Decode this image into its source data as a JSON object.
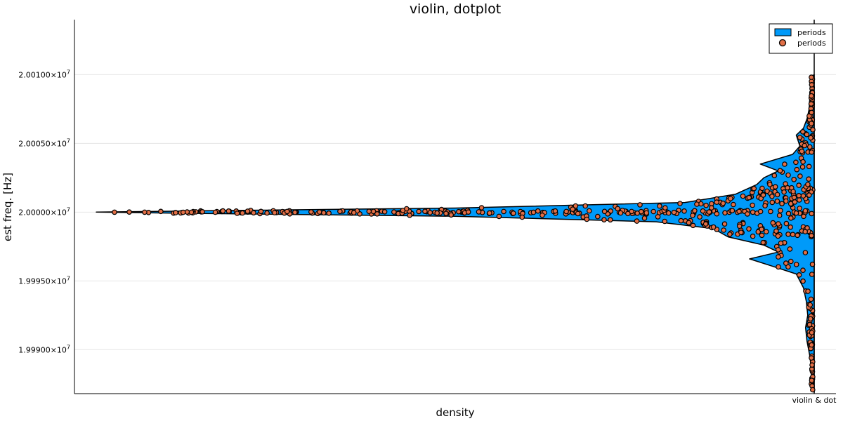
{
  "chart_data": {
    "type": "violin",
    "title": "violin, dotplot",
    "xlabel": "density",
    "ylabel": "est freq. [Hz]",
    "ylim": [
      19986800,
      20014000
    ],
    "categories": [
      "violin & dot"
    ],
    "yticks": [
      {
        "value": 19990000,
        "mantissa": "1.99900",
        "exp": "7"
      },
      {
        "value": 19995000,
        "mantissa": "1.99950",
        "exp": "7"
      },
      {
        "value": 20000000,
        "mantissa": "2.00000",
        "exp": "7"
      },
      {
        "value": 20005000,
        "mantissa": "2.00050",
        "exp": "7"
      },
      {
        "value": 20010000,
        "mantissa": "2.00100",
        "exp": "7"
      }
    ],
    "grid": true,
    "legend_position": "top-right",
    "series": [
      {
        "name": "periods",
        "kind": "violin",
        "color": "#009af9"
      },
      {
        "name": "periods",
        "kind": "dots",
        "color": "#e26f46"
      }
    ],
    "violin_profile": [
      [
        19986900,
        0.0
      ],
      [
        19987500,
        0.004
      ],
      [
        19988500,
        0.004
      ],
      [
        19989500,
        0.006
      ],
      [
        19990600,
        0.01
      ],
      [
        19991600,
        0.012
      ],
      [
        19992500,
        0.009
      ],
      [
        19993500,
        0.011
      ],
      [
        19994500,
        0.015
      ],
      [
        19995500,
        0.025
      ],
      [
        19996100,
        0.06
      ],
      [
        19996600,
        0.09
      ],
      [
        19997100,
        0.05
      ],
      [
        19997600,
        0.07
      ],
      [
        19998200,
        0.12
      ],
      [
        19998800,
        0.14
      ],
      [
        19999300,
        0.22
      ],
      [
        19999700,
        0.5
      ],
      [
        19999900,
        0.85
      ],
      [
        20000000,
        1.0
      ],
      [
        20000100,
        0.85
      ],
      [
        20000300,
        0.5
      ],
      [
        20000700,
        0.18
      ],
      [
        20001300,
        0.11
      ],
      [
        20002000,
        0.08
      ],
      [
        20002500,
        0.07
      ],
      [
        20003000,
        0.05
      ],
      [
        20003500,
        0.075
      ],
      [
        20004200,
        0.03
      ],
      [
        20004800,
        0.02
      ],
      [
        20005600,
        0.025
      ],
      [
        20006100,
        0.015
      ],
      [
        20006800,
        0.01
      ],
      [
        20007500,
        0.007
      ],
      [
        20008400,
        0.006
      ],
      [
        20009200,
        0.004
      ],
      [
        20009900,
        0.003
      ],
      [
        20010000,
        0.0
      ]
    ]
  },
  "legend": {
    "violin_label": "periods",
    "dots_label": "periods"
  }
}
